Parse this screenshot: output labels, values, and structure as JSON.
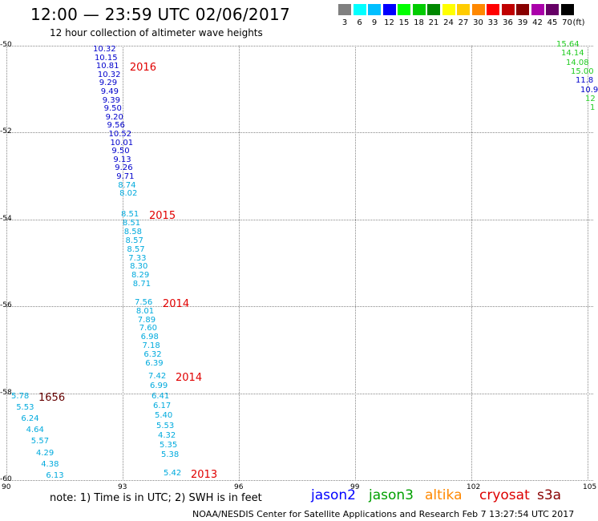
{
  "title": "12:00  —  23:59 UTC 02/06/2017",
  "subtitle": "12 hour collection of altimeter wave heights",
  "scale": {
    "unit": "(ft)",
    "colors": [
      "#808080",
      "#00ffff",
      "#00bfff",
      "#0000ff",
      "#00ff00",
      "#00cc00",
      "#008800",
      "#ffff00",
      "#ffcc00",
      "#ff8800",
      "#ff0000",
      "#c00000",
      "#880000",
      "#aa00aa",
      "#660066",
      "#000000"
    ],
    "labels": [
      "3",
      "6",
      "9",
      "12",
      "15",
      "18",
      "21",
      "24",
      "27",
      "30",
      "33",
      "36",
      "39",
      "42",
      "45",
      "70"
    ]
  },
  "map": {
    "lat_labels": [
      "-50",
      "-52",
      "-54",
      "-56",
      "-58",
      "-60"
    ],
    "lon_labels": [
      "90",
      "93",
      "96",
      "99",
      "102",
      "105"
    ],
    "lat_range": [
      -60,
      -50
    ],
    "lon_range": [
      90,
      105
    ]
  },
  "tracks": [
    {
      "year": "2016",
      "points": [
        {
          "v": "10.32",
          "c": "#0000cc"
        },
        {
          "v": "10.15",
          "c": "#0000cc"
        },
        {
          "v": "10.81",
          "c": "#0000cc"
        },
        {
          "v": "10.32",
          "c": "#0000cc"
        },
        {
          "v": "9.29",
          "c": "#0000cc"
        },
        {
          "v": "9.49",
          "c": "#0000cc"
        },
        {
          "v": "9.39",
          "c": "#0000cc"
        },
        {
          "v": "9.50",
          "c": "#0000cc"
        },
        {
          "v": "9.20",
          "c": "#0000cc"
        },
        {
          "v": "9.56",
          "c": "#0000cc"
        },
        {
          "v": "10.52",
          "c": "#0000cc"
        },
        {
          "v": "10.01",
          "c": "#0000cc"
        },
        {
          "v": "9.50",
          "c": "#0000cc"
        },
        {
          "v": "9.13",
          "c": "#0000cc"
        },
        {
          "v": "9.26",
          "c": "#0000cc"
        },
        {
          "v": "9.71",
          "c": "#0000cc"
        },
        {
          "v": "8.74",
          "c": "#00aadd"
        },
        {
          "v": "8.02",
          "c": "#00aadd"
        }
      ]
    },
    {
      "year": "2015",
      "points": [
        {
          "v": "8.51",
          "c": "#00aadd"
        },
        {
          "v": "8.51",
          "c": "#00aadd"
        },
        {
          "v": "8.58",
          "c": "#00aadd"
        },
        {
          "v": "8.57",
          "c": "#00aadd"
        },
        {
          "v": "8.57",
          "c": "#00aadd"
        },
        {
          "v": "7.33",
          "c": "#00aadd"
        },
        {
          "v": "8.30",
          "c": "#00aadd"
        },
        {
          "v": "8.29",
          "c": "#00aadd"
        },
        {
          "v": "8.71",
          "c": "#00aadd"
        }
      ]
    },
    {
      "year": "2014",
      "points": [
        {
          "v": "7.56",
          "c": "#00aadd"
        },
        {
          "v": "8.01",
          "c": "#00aadd"
        },
        {
          "v": "7.89",
          "c": "#00aadd"
        },
        {
          "v": "7.60",
          "c": "#00aadd"
        },
        {
          "v": "6.98",
          "c": "#00aadd"
        },
        {
          "v": "7.18",
          "c": "#00aadd"
        },
        {
          "v": "6.32",
          "c": "#00aadd"
        },
        {
          "v": "6.39",
          "c": "#00aadd"
        }
      ]
    },
    {
      "year": "2014",
      "points": [
        {
          "v": "7.42",
          "c": "#00aadd"
        },
        {
          "v": "6.99",
          "c": "#00aadd"
        },
        {
          "v": "6.41",
          "c": "#00aadd"
        },
        {
          "v": "6.17",
          "c": "#00aadd"
        },
        {
          "v": "5.40",
          "c": "#00aadd"
        },
        {
          "v": "5.53",
          "c": "#00aadd"
        },
        {
          "v": "4.32",
          "c": "#00aadd"
        },
        {
          "v": "5.35",
          "c": "#00aadd"
        },
        {
          "v": "5.38",
          "c": "#00aadd"
        }
      ]
    },
    {
      "year": "2013",
      "points": [
        {
          "v": "5.42",
          "c": "#00aadd"
        }
      ]
    },
    {
      "year": "1656",
      "points": [
        {
          "v": "5.78",
          "c": "#00aadd"
        },
        {
          "v": "5.53",
          "c": "#00aadd"
        },
        {
          "v": "6.24",
          "c": "#00aadd"
        },
        {
          "v": "4.64",
          "c": "#00aadd"
        },
        {
          "v": "5.57",
          "c": "#00aadd"
        },
        {
          "v": "4.29",
          "c": "#00aadd"
        },
        {
          "v": "4.38",
          "c": "#00aadd"
        },
        {
          "v": "6.13",
          "c": "#00aadd"
        }
      ]
    },
    {
      "year": "",
      "points": [
        {
          "v": "15.64",
          "c": "#22cc22"
        },
        {
          "v": "14.14",
          "c": "#22cc22"
        },
        {
          "v": "14.08",
          "c": "#22cc22"
        },
        {
          "v": "15.00",
          "c": "#22cc22"
        },
        {
          "v": "11.8",
          "c": "#0000cc"
        },
        {
          "v": "10.9",
          "c": "#0000cc"
        },
        {
          "v": "12",
          "c": "#22cc22"
        },
        {
          "v": "1",
          "c": "#22cc22"
        }
      ]
    }
  ],
  "note": "note: 1) Time is in UTC; 2) SWH is in feet",
  "satellites": [
    {
      "name": "jason2",
      "color": "#0000ff"
    },
    {
      "name": "jason3",
      "color": "#00a000"
    },
    {
      "name": "altika",
      "color": "#ff8800"
    },
    {
      "name": "cryosat",
      "color": "#dd0000"
    },
    {
      "name": "s3a",
      "color": "#880000"
    }
  ],
  "credit": "NOAA/NESDIS Center for Satellite Applications and Research    Feb  7 13:27:54 UTC 2017"
}
